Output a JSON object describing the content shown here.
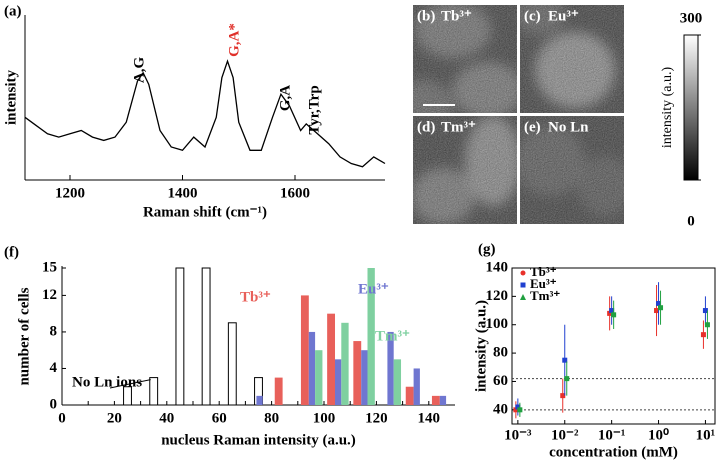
{
  "chart_data": [
    {
      "type": "line",
      "panel": "(a)",
      "xlabel": "Raman shift (cm⁻¹)",
      "ylabel": "intensity",
      "color": "#000000",
      "x": [
        1120,
        1140,
        1160,
        1180,
        1200,
        1220,
        1240,
        1260,
        1280,
        1300,
        1320,
        1330,
        1340,
        1360,
        1380,
        1400,
        1420,
        1440,
        1460,
        1470,
        1480,
        1490,
        1500,
        1520,
        1540,
        1560,
        1575,
        1590,
        1610,
        1620,
        1640,
        1660,
        1680,
        1700,
        1720,
        1740,
        1760
      ],
      "values": [
        38,
        33,
        28,
        26,
        28,
        30,
        26,
        24,
        26,
        35,
        60,
        65,
        58,
        30,
        20,
        18,
        26,
        20,
        38,
        62,
        72,
        62,
        35,
        18,
        18,
        38,
        52,
        45,
        30,
        34,
        28,
        22,
        14,
        10,
        8,
        14,
        10
      ],
      "xlim": [
        1120,
        1760
      ],
      "ylim": [
        0,
        100
      ],
      "xticks": [
        1200,
        1400,
        1600
      ],
      "annotations": [
        {
          "text": "A,G",
          "color": "#000000"
        },
        {
          "text": "G,A*",
          "color": "#e0302a"
        },
        {
          "text": "G,A",
          "color": "#000000"
        },
        {
          "text": "Tyr,Trp",
          "color": "#000000"
        }
      ]
    },
    {
      "type": "colorbar",
      "ylabel": "intensity (a.u.)",
      "ylim": [
        0,
        300
      ],
      "yticks": [
        0,
        300
      ]
    },
    {
      "type": "histogram",
      "panel": "(f)",
      "xlabel": "nucleus Raman intensity (a.u.)",
      "ylabel": "number of cells",
      "x": [
        25,
        35,
        45,
        55,
        65,
        75,
        85,
        95,
        105,
        115,
        125,
        135,
        145
      ],
      "series": [
        {
          "name": "No Ln ions",
          "color": "#ffffff",
          "values": [
            2,
            3,
            15,
            15,
            9,
            3,
            null,
            null,
            null,
            null,
            null,
            null,
            null
          ]
        },
        {
          "name": "Tb³⁺",
          "color": "#e8605a",
          "values": [
            null,
            null,
            null,
            null,
            null,
            null,
            3,
            12,
            10,
            7,
            null,
            2,
            1
          ]
        },
        {
          "name": "Eu³⁺",
          "color": "#6f76d0",
          "values": [
            null,
            null,
            null,
            null,
            null,
            1,
            null,
            8,
            5,
            6,
            8,
            4,
            1
          ]
        },
        {
          "name": "Tm³⁺",
          "color": "#7fd0a0",
          "values": [
            null,
            null,
            null,
            null,
            null,
            null,
            null,
            6,
            9,
            15,
            5,
            null,
            null
          ]
        }
      ],
      "xlim": [
        0,
        150
      ],
      "xticks": [
        0,
        10,
        20,
        30,
        40,
        50,
        60,
        70,
        80,
        90,
        100,
        110,
        120,
        130,
        140
      ],
      "ylim": [
        0,
        15
      ],
      "yticks": [
        0,
        4,
        8,
        12,
        15
      ]
    },
    {
      "type": "scatter",
      "panel": "(g)",
      "xlabel": "concentration (mM)",
      "ylabel": "intensity (a.u.)",
      "xscale": "log",
      "x": [
        0.001,
        0.01,
        0.1,
        1,
        10
      ],
      "series": [
        {
          "name": "Tb³⁺",
          "color": "#e8302a",
          "values": [
            40,
            50,
            108,
            110,
            93
          ],
          "errors": [
            6,
            12,
            12,
            18,
            10
          ]
        },
        {
          "name": "Eu³⁺",
          "color": "#2040d0",
          "values": [
            42,
            75,
            110,
            115,
            110
          ],
          "errors": [
            6,
            25,
            10,
            15,
            10
          ]
        },
        {
          "name": "Tm³⁺",
          "color": "#20a040",
          "values": [
            40,
            62,
            107,
            112,
            100
          ],
          "errors": [
            5,
            12,
            10,
            12,
            10
          ]
        }
      ],
      "xlim": [
        0.00075,
        16
      ],
      "xticks": [
        {
          "value": 0.001,
          "label": "10⁻³"
        },
        {
          "value": 0.01,
          "label": "10⁻²"
        },
        {
          "value": 0.1,
          "label": "10⁻¹"
        },
        {
          "value": 1,
          "label": "10⁰"
        },
        {
          "value": 10,
          "label": "10¹"
        }
      ],
      "ylim": [
        30,
        140
      ],
      "yticks": [
        40,
        60,
        80,
        100,
        120,
        140
      ],
      "hlines": [
        40,
        62
      ]
    }
  ],
  "images": [
    {
      "panel": "(b)",
      "label": "Tb³⁺"
    },
    {
      "panel": "(c)",
      "label": "Eu³⁺"
    },
    {
      "panel": "(d)",
      "label": "Tm³⁺"
    },
    {
      "panel": "(e)",
      "label": "No Ln"
    }
  ]
}
